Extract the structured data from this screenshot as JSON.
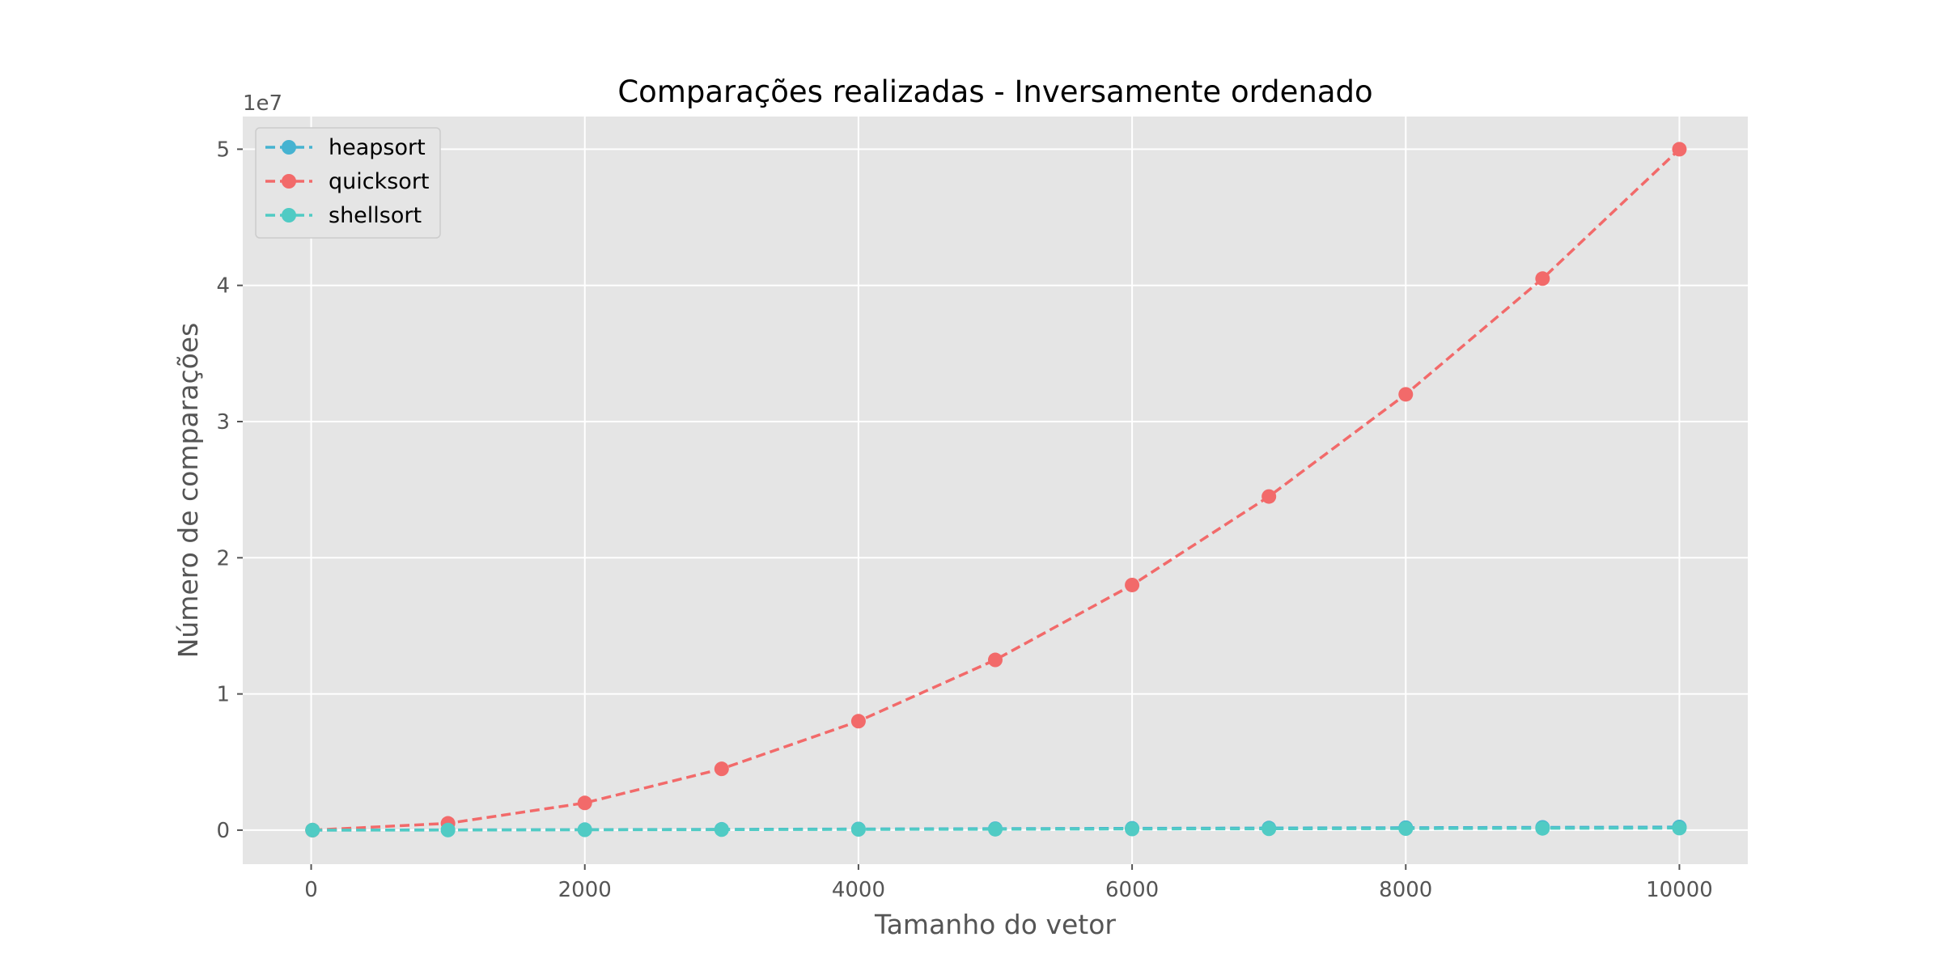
{
  "chart_data": {
    "type": "line",
    "title": "Comparações realizadas - Inversamente ordenado",
    "xlabel": "Tamanho do vetor",
    "ylabel": "Número de comparações",
    "y_offset_label": "1e7",
    "xlim": [
      -500,
      10500
    ],
    "ylim": [
      -2500000,
      52400000
    ],
    "x_ticks": [
      0,
      2000,
      4000,
      6000,
      8000,
      10000
    ],
    "x_tick_labels": [
      "0",
      "2000",
      "4000",
      "6000",
      "8000",
      "10000"
    ],
    "y_ticks": [
      0,
      10000000,
      20000000,
      30000000,
      40000000,
      50000000
    ],
    "y_tick_labels": [
      "0",
      "1",
      "2",
      "3",
      "4",
      "5"
    ],
    "grid": true,
    "legend_position": "top-left",
    "x": [
      10,
      1000,
      2000,
      3000,
      4000,
      5000,
      6000,
      7000,
      8000,
      9000,
      10000
    ],
    "series": [
      {
        "name": "heapsort",
        "color": "#46b3d1",
        "values": [
          60,
          17000,
          39000,
          61000,
          85000,
          110000,
          133000,
          157000,
          181000,
          206000,
          230000
        ]
      },
      {
        "name": "quicksort",
        "color": "#f26a6a",
        "values": [
          50,
          500000,
          2000000,
          4500000,
          8000000,
          12500000,
          18000000,
          24500000,
          32000000,
          40500000,
          50000000
        ]
      },
      {
        "name": "shellsort",
        "color": "#50cbc4",
        "values": [
          30,
          10000,
          24000,
          37000,
          53000,
          65000,
          82000,
          97000,
          113000,
          130000,
          148000
        ]
      }
    ]
  }
}
